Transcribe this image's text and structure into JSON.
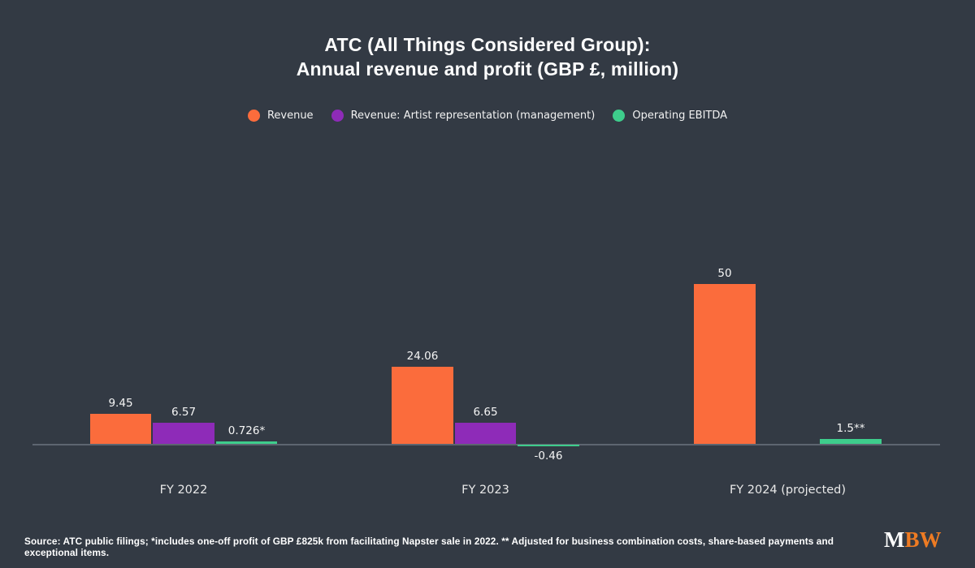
{
  "title": {
    "line1": "ATC (All Things Considered Group):",
    "line2": "Annual revenue and profit (GBP £, million)"
  },
  "chart_data": {
    "type": "bar",
    "categories": [
      "FY 2022",
      "FY 2023",
      "FY 2024 (projected)"
    ],
    "series": [
      {
        "name": "Revenue",
        "color": "#fb6c3c",
        "values": [
          9.45,
          24.06,
          50
        ],
        "labels": [
          "9.45",
          "24.06",
          "50"
        ]
      },
      {
        "name": "Revenue: Artist representation (management)",
        "color": "#8e2bb8",
        "values": [
          6.57,
          6.65,
          null
        ],
        "labels": [
          "6.57",
          "6.65",
          null
        ]
      },
      {
        "name": "Operating EBITDA",
        "color": "#3ecd8c",
        "values": [
          0.726,
          -0.46,
          1.5
        ],
        "labels": [
          "0.726*",
          "-0.46",
          "1.5**"
        ]
      }
    ],
    "title": "ATC (All Things Considered Group): Annual revenue and profit (GBP £, million)",
    "xlabel": "",
    "ylabel": "",
    "ylim": [
      -2,
      55
    ],
    "grid": false,
    "legend_position": "top-center"
  },
  "colors": {
    "background": "#333a44",
    "axis_line": "#5d6570",
    "text": "#ffffff",
    "revenue_orange": "#fb6c3c",
    "artist_rep_purple": "#8e2bb8",
    "ebitda_green": "#3ecd8c",
    "logo_orange": "#ee7b23"
  },
  "footer": {
    "source": "Source: ATC public filings; *includes one-off profit of GBP £825k from facilitating Napster sale in 2022. ** Adjusted for business combination costs, share-based payments and exceptional items.",
    "logo_m": "M",
    "logo_bw": "BW"
  }
}
